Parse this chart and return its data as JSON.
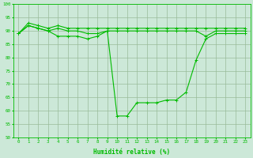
{
  "hours": [
    0,
    1,
    2,
    3,
    4,
    5,
    6,
    7,
    8,
    9,
    10,
    11,
    12,
    13,
    14,
    15,
    16,
    17,
    18,
    19,
    20,
    21,
    22,
    23
  ],
  "hum_upper": [
    89,
    93,
    92,
    91,
    92,
    91,
    91,
    91,
    91,
    91,
    91,
    91,
    91,
    91,
    91,
    91,
    91,
    91,
    91,
    91,
    91,
    91,
    91,
    91
  ],
  "hum_mid": [
    89,
    92,
    91,
    90,
    91,
    90,
    90,
    89,
    89,
    90,
    90,
    90,
    90,
    90,
    90,
    90,
    90,
    90,
    90,
    88,
    90,
    90,
    90,
    90
  ],
  "hum_lower": [
    89,
    92,
    91,
    90,
    88,
    88,
    88,
    87,
    88,
    90,
    58,
    58,
    63,
    63,
    63,
    64,
    64,
    67,
    79,
    87,
    89,
    89,
    89,
    89
  ],
  "line_color": "#00bb00",
  "bg_color": "#cce8d8",
  "grid_color": "#99bb99",
  "xlabel": "Humidité relative (%)",
  "ylim": [
    50,
    100
  ],
  "xlim_min": -0.5,
  "xlim_max": 23.5,
  "yticks": [
    50,
    55,
    60,
    65,
    70,
    75,
    80,
    85,
    90,
    95,
    100
  ],
  "xticks": [
    0,
    1,
    2,
    3,
    4,
    5,
    6,
    7,
    8,
    9,
    10,
    11,
    12,
    13,
    14,
    15,
    16,
    17,
    18,
    19,
    20,
    21,
    22,
    23
  ],
  "tick_fontsize": 4.2,
  "xlabel_fontsize": 5.5
}
